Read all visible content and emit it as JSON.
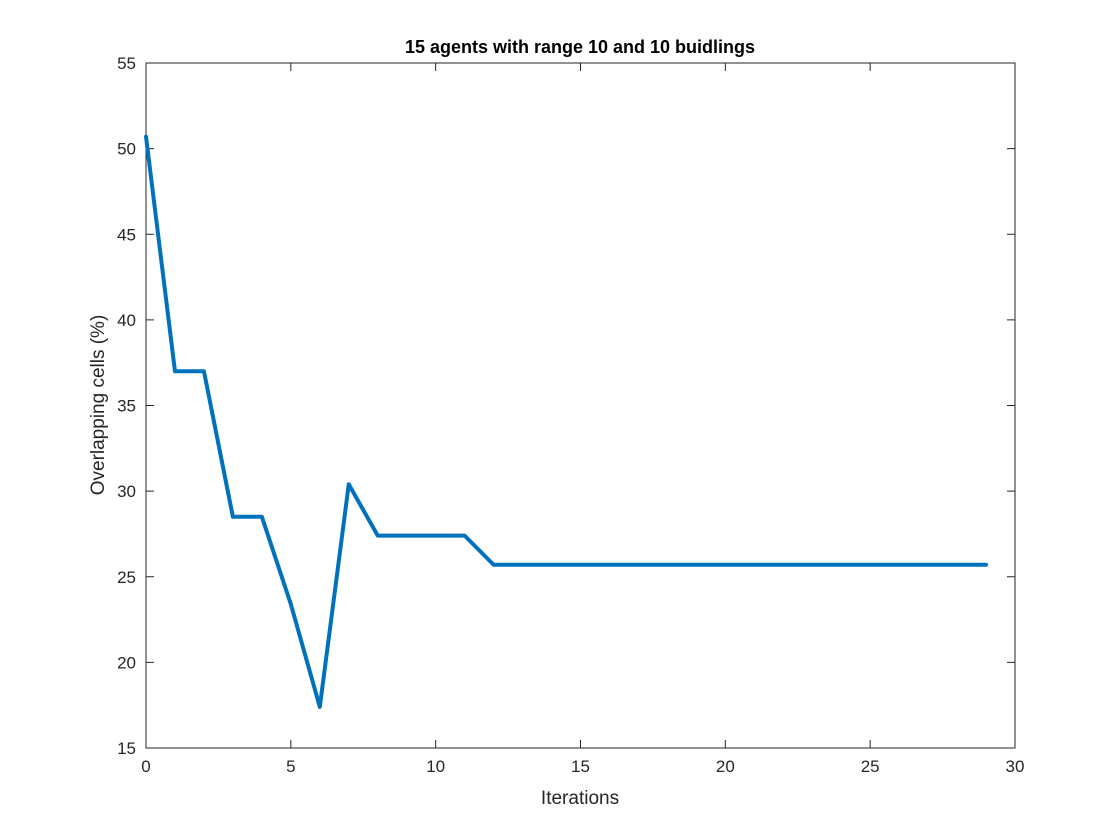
{
  "chart_data": {
    "type": "line",
    "title": "15 agents with range 10 and 10 buidlings",
    "xlabel": "Iterations",
    "ylabel": "Overlapping cells (%)",
    "xlim": [
      0,
      30
    ],
    "ylim": [
      15,
      55
    ],
    "xticks": [
      0,
      5,
      10,
      15,
      20,
      25,
      30
    ],
    "yticks": [
      15,
      20,
      25,
      30,
      35,
      40,
      45,
      50,
      55
    ],
    "grid": false,
    "legend": "none",
    "series": [
      {
        "color": "#0072BD",
        "x": [
          0,
          1,
          2,
          3,
          4,
          5,
          6,
          7,
          8,
          9,
          10,
          11,
          12,
          13,
          14,
          15,
          16,
          17,
          18,
          19,
          20,
          21,
          22,
          23,
          24,
          25,
          26,
          27,
          28,
          29
        ],
        "y": [
          50.7,
          37.0,
          37.0,
          28.5,
          28.5,
          23.4,
          17.4,
          30.4,
          27.4,
          27.4,
          27.4,
          27.4,
          25.7,
          25.7,
          25.7,
          25.7,
          25.7,
          25.7,
          25.7,
          25.7,
          25.7,
          25.7,
          25.7,
          25.7,
          25.7,
          25.7,
          25.7,
          25.7,
          25.7,
          25.7
        ]
      }
    ]
  }
}
